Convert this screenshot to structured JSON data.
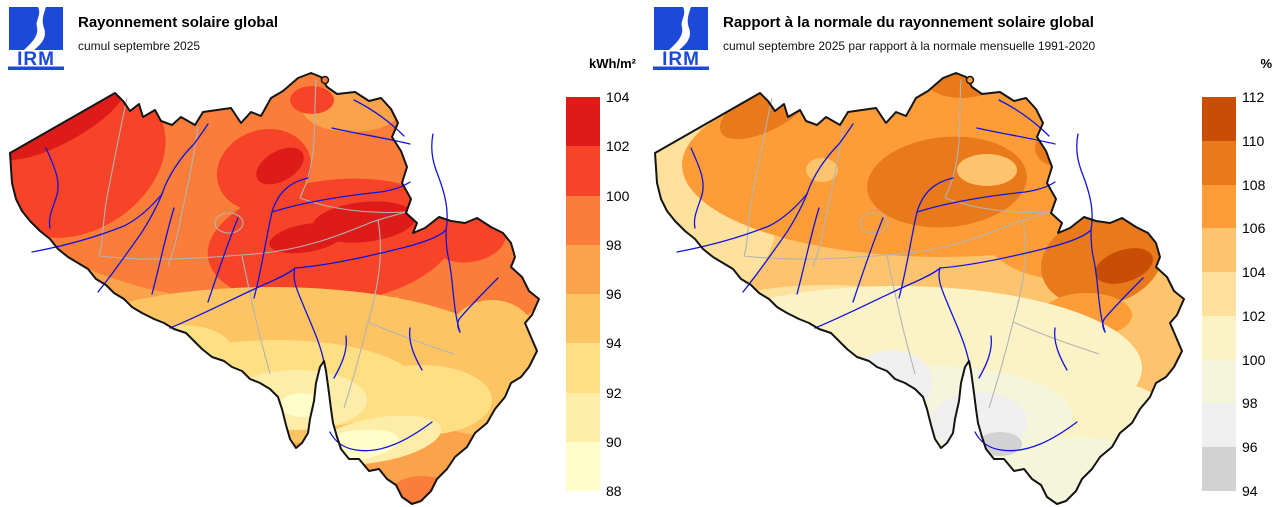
{
  "panels": {
    "left": {
      "logo_text": "IRM",
      "title": "Rayonnement solaire global",
      "subtitle": "cumul septembre 2025",
      "legend": {
        "unit": "kWh/m²",
        "labels": [
          "104",
          "102",
          "100",
          "98",
          "96",
          "94",
          "92",
          "90",
          "88"
        ],
        "colors": [
          "#dd1c1a",
          "#f74429",
          "#fa7d3a",
          "#faa34b",
          "#fdc464",
          "#fedf84",
          "#feeda9",
          "#fffdc9"
        ]
      }
    },
    "right": {
      "logo_text": "IRM",
      "title": "Rapport à la normale du rayonnement solaire global",
      "subtitle": "cumul septembre 2025 par rapport à la normale mensuelle 1991-2020",
      "legend": {
        "unit": "%",
        "labels": [
          "112",
          "110",
          "108",
          "106",
          "104",
          "102",
          "100",
          "98",
          "96",
          "94"
        ],
        "colors": [
          "#c94e05",
          "#e87a1b",
          "#fe9d38",
          "#fdc46d",
          "#fde19c",
          "#fbf3c5",
          "#f5f5dc",
          "#efefef",
          "#d2d2d2"
        ]
      }
    }
  },
  "map": {
    "background": "#ffffff",
    "outline_color": "#141414",
    "river_color": "#1313dd",
    "province_color": "#b3b3b3",
    "logo_color": "#1d49d8"
  },
  "chart_data": [
    {
      "type": "heatmap",
      "map_of": "Belgium",
      "title": "Rayonnement solaire global",
      "subtitle": "cumul septembre 2025",
      "unit": "kWh/m²",
      "scale": {
        "min": 88,
        "max": 104,
        "step": 2,
        "classes": 8,
        "colors_high_to_low": [
          "#dd1c1a",
          "#f74429",
          "#fa7d3a",
          "#faa34b",
          "#fdc464",
          "#fedf84",
          "#feeda9",
          "#fffdc9"
        ]
      },
      "approx_readings": {
        "littoral / côte": "102-104",
        "Flandre occidentale": "100-102",
        "centre (Brabant - Hesbaye)": "100-104",
        "Campine / nord-est": "96-100",
        "région liégeoise": "100-102",
        "Hainaut - Namur": "94-98",
        "Ardenne": "90-94",
        "vallée de la Semois": "88-90",
        "Gaume / extrême sud": "96-100"
      }
    },
    {
      "type": "heatmap",
      "map_of": "Belgium",
      "title": "Rapport à la normale du rayonnement solaire global",
      "subtitle": "cumul septembre 2025 par rapport à la normale mensuelle 1991-2020",
      "unit": "%",
      "scale": {
        "min": 94,
        "max": 112,
        "step": 2,
        "classes": 9,
        "colors_high_to_low": [
          "#c94e05",
          "#e87a1b",
          "#fe9d38",
          "#fdc46d",
          "#fde19c",
          "#fbf3c5",
          "#f5f5dc",
          "#efefef",
          "#d2d2d2"
        ]
      },
      "approx_readings": {
        "nord du pays (Flandre)": "106-110",
        "côte ouest": "102-106",
        "région Anvers - Brabant - Limbourg": "108-110",
        "Hautes Fagnes / cantons de l'Est": "110-112",
        "sillon Sambre-et-Meuse": "100-104",
        "Ardenne / sud": "96-100",
        "Botte du Hainaut et haute Semois": "94-98"
      }
    }
  ]
}
